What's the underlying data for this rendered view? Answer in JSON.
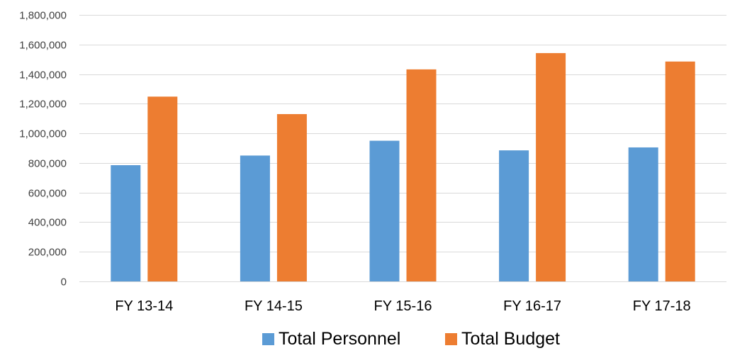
{
  "chart_data": {
    "type": "bar",
    "title": "",
    "xlabel": "",
    "ylabel": "",
    "categories": [
      "FY 13-14",
      "FY 14-15",
      "FY 15-16",
      "FY 16-17",
      "FY 17-18"
    ],
    "series": [
      {
        "name": "Total Personnel",
        "color": "#5b9bd5",
        "values": [
          785000,
          850000,
          950000,
          885000,
          905000
        ]
      },
      {
        "name": "Total Budget",
        "color": "#ed7d31",
        "values": [
          1248000,
          1130000,
          1432000,
          1542000,
          1485000
        ]
      }
    ],
    "ylim": [
      0,
      1800000
    ],
    "yticks": [
      0,
      200000,
      400000,
      600000,
      800000,
      1000000,
      1200000,
      1400000,
      1600000,
      1800000
    ],
    "ytick_labels": [
      "0",
      "200,000",
      "400,000",
      "600,000",
      "800,000",
      "1,000,000",
      "1,200,000",
      "1,400,000",
      "1,600,000",
      "1,800,000"
    ],
    "grid": true,
    "legend": "bottom"
  }
}
